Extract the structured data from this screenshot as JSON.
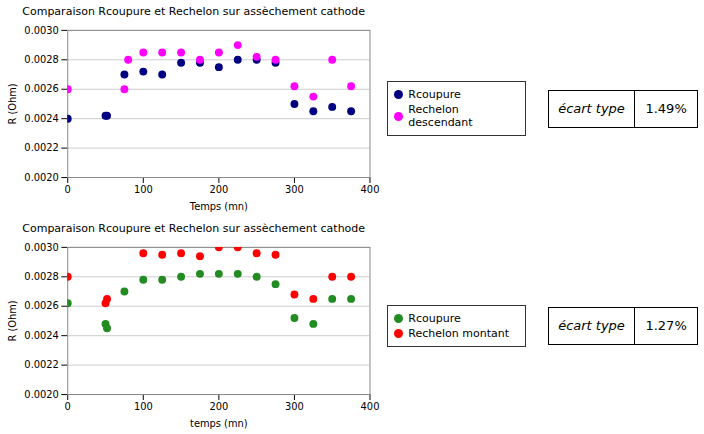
{
  "chart_data": [
    {
      "type": "scatter",
      "title": "Comparaison Rcoupure et Rechelon sur assèchement cathode",
      "x_label": "Temps (mn)",
      "y_label": "R (Ohm)",
      "xlim": [
        0,
        400
      ],
      "xticks": [
        0,
        100,
        200,
        300,
        400
      ],
      "ylim": [
        0.002,
        0.003
      ],
      "yticks": [
        {
          "value": 0.002,
          "label": "0.0020"
        },
        0.0022,
        0.0024,
        0.0026,
        0.0028,
        {
          "value": 0.003,
          "label": "0.0030"
        }
      ],
      "grid": "y",
      "series": [
        {
          "name": "Rcoupure",
          "color": "#000080",
          "x": [
            0,
            50,
            52,
            75,
            100,
            125,
            150,
            175,
            200,
            225,
            250,
            275,
            300,
            325,
            350,
            375
          ],
          "values": [
            0.0024,
            0.00242,
            0.00242,
            0.0027,
            0.00272,
            0.0027,
            0.00278,
            0.00278,
            0.00275,
            0.0028,
            0.0028,
            0.00278,
            0.0025,
            0.00245,
            0.00248,
            0.00245
          ]
        },
        {
          "name": "Rechelon descendant",
          "color": "#FF00FF",
          "x": [
            0,
            75,
            80,
            100,
            125,
            150,
            175,
            200,
            225,
            250,
            275,
            300,
            325,
            350,
            375
          ],
          "values": [
            0.0026,
            0.0026,
            0.0028,
            0.00285,
            0.00285,
            0.00285,
            0.0028,
            0.00285,
            0.0029,
            0.00282,
            0.0028,
            0.00262,
            0.00255,
            0.0028,
            0.00262
          ]
        }
      ],
      "annotations": [
        "écart type",
        "1.49%"
      ]
    },
    {
      "type": "scatter",
      "title": "Comparaison Rcoupure et Rechelon sur assèchement cathode",
      "x_label": "temps (mn)",
      "y_label": "R (Ohm)",
      "xlim": [
        0,
        400
      ],
      "xticks": [
        0,
        100,
        200,
        300,
        400
      ],
      "ylim": [
        0.002,
        0.003
      ],
      "yticks": [
        {
          "value": 0.002,
          "label": "0.0020"
        },
        0.0022,
        0.0024,
        0.0026,
        0.0028,
        {
          "value": 0.003,
          "label": "0.0030"
        }
      ],
      "grid": "y",
      "series": [
        {
          "name": "Rcoupure",
          "color": "#228B22",
          "x": [
            0,
            50,
            52,
            75,
            100,
            125,
            150,
            175,
            200,
            225,
            250,
            275,
            300,
            325,
            350,
            375
          ],
          "values": [
            0.00262,
            0.00248,
            0.00245,
            0.0027,
            0.00278,
            0.00278,
            0.0028,
            0.00282,
            0.00282,
            0.00282,
            0.0028,
            0.00275,
            0.00252,
            0.00248,
            0.00265,
            0.00265
          ]
        },
        {
          "name": "Rechelon montant",
          "color": "#FF0000",
          "x": [
            0,
            50,
            52,
            100,
            125,
            150,
            175,
            200,
            225,
            250,
            275,
            300,
            325,
            350,
            375
          ],
          "values": [
            0.0028,
            0.00262,
            0.00265,
            0.00296,
            0.00295,
            0.00296,
            0.00294,
            0.003,
            0.003,
            0.00296,
            0.00295,
            0.00268,
            0.00265,
            0.0028,
            0.0028
          ]
        }
      ],
      "annotations": [
        "écart type",
        "1.27%"
      ]
    }
  ]
}
